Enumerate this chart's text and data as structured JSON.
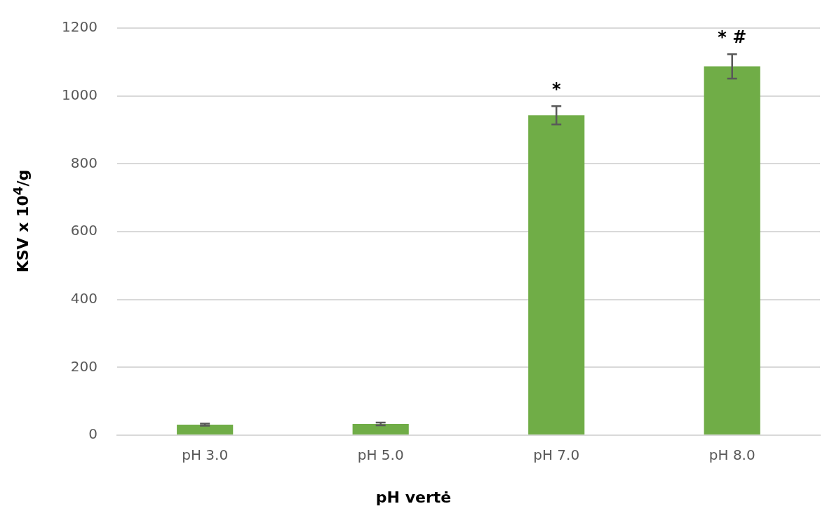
{
  "chart_data": {
    "type": "bar",
    "xlabel": "pH vertė",
    "ylabel": "KSV x 10$^{4}$/g",
    "categories": [
      "pH 3.0",
      "pH 5.0",
      "pH 7.0",
      "pH 8.0"
    ],
    "values": [
      31,
      33,
      943,
      1087
    ],
    "errors": [
      3,
      4,
      27,
      36
    ],
    "color": "#70ad47",
    "ylim": [
      0,
      1200
    ],
    "yticks": [
      0,
      200,
      400,
      600,
      800,
      1000,
      1200
    ],
    "grid": "y",
    "legend": false,
    "annotations": [
      "*",
      "* #"
    ]
  }
}
